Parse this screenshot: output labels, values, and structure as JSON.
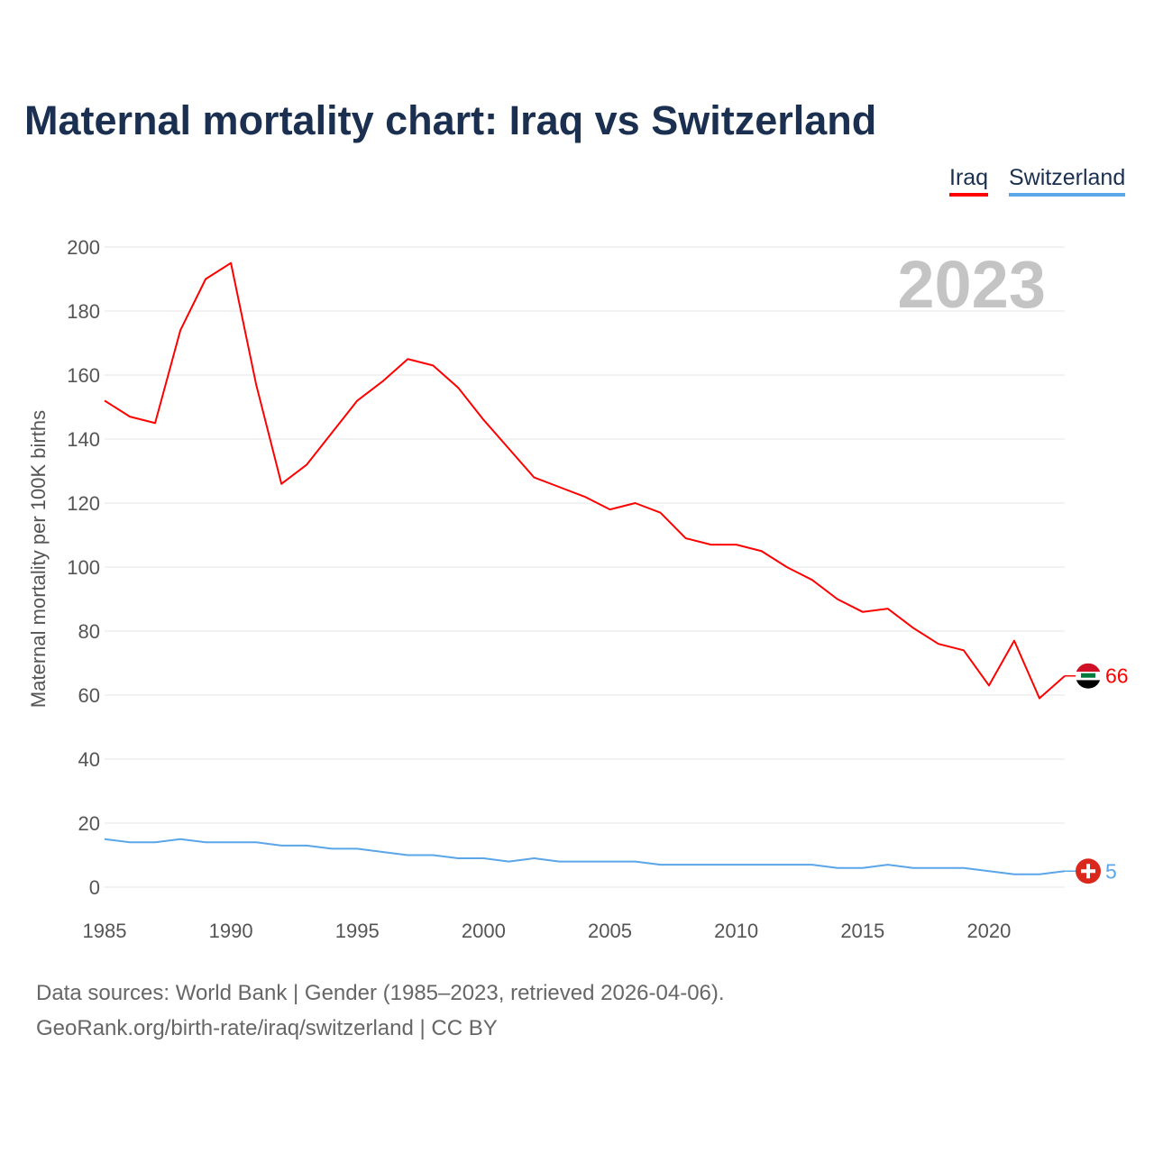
{
  "title": "Maternal mortality chart: Iraq vs Switzerland",
  "footer": {
    "line1": "Data sources: World Bank | Gender (1985–2023, retrieved 2026-04-06).",
    "line2": "GeoRank.org/birth-rate/iraq/switzerland | CC BY"
  },
  "chart_data": {
    "type": "line",
    "title": "Maternal mortality chart: Iraq vs Switzerland",
    "ylabel": "Maternal mortality per 100K births",
    "xlabel": "",
    "year_watermark": "2023",
    "xlim": [
      1985,
      2023
    ],
    "ylim": [
      0,
      200
    ],
    "xticks": [
      1985,
      1990,
      1995,
      2000,
      2005,
      2010,
      2015,
      2020
    ],
    "yticks": [
      0,
      20,
      40,
      60,
      80,
      100,
      120,
      140,
      160,
      180,
      200
    ],
    "grid": true,
    "legend_position": "top-right",
    "x": [
      1985,
      1986,
      1987,
      1988,
      1989,
      1990,
      1991,
      1992,
      1993,
      1994,
      1995,
      1996,
      1997,
      1998,
      1999,
      2000,
      2001,
      2002,
      2003,
      2004,
      2005,
      2006,
      2007,
      2008,
      2009,
      2010,
      2011,
      2012,
      2013,
      2014,
      2015,
      2016,
      2017,
      2018,
      2019,
      2020,
      2021,
      2022,
      2023
    ],
    "series": [
      {
        "name": "Iraq",
        "color": "#ff0000",
        "end_label": "66",
        "values": [
          152,
          147,
          145,
          174,
          190,
          195,
          157,
          126,
          132,
          142,
          152,
          158,
          165,
          163,
          156,
          146,
          137,
          128,
          125,
          122,
          118,
          120,
          117,
          109,
          107,
          107,
          105,
          100,
          96,
          90,
          86,
          87,
          81,
          76,
          74,
          63,
          77,
          59,
          66
        ]
      },
      {
        "name": "Switzerland",
        "color": "#5aa6e8",
        "end_label": "5",
        "values": [
          15,
          14,
          14,
          15,
          14,
          14,
          14,
          13,
          13,
          12,
          12,
          11,
          10,
          10,
          9,
          9,
          8,
          9,
          8,
          8,
          8,
          8,
          7,
          7,
          7,
          7,
          7,
          7,
          7,
          6,
          6,
          7,
          6,
          6,
          6,
          5,
          4,
          4,
          5
        ]
      }
    ]
  }
}
